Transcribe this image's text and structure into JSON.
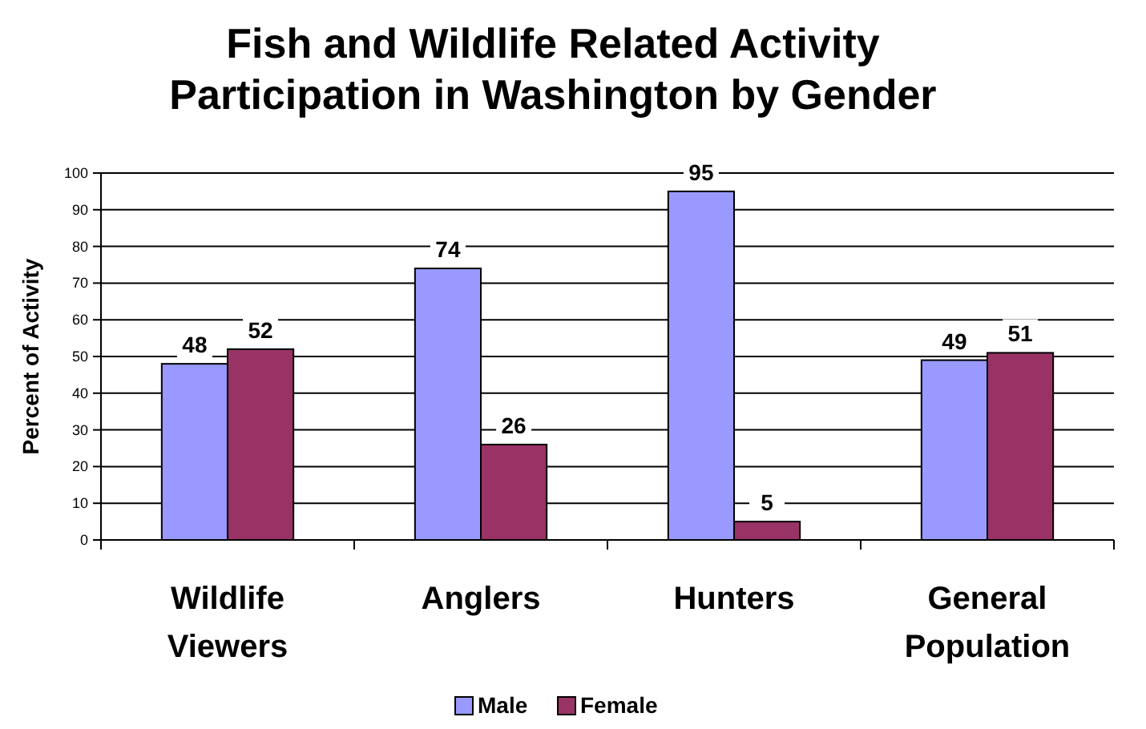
{
  "chart_data": {
    "type": "bar",
    "title": "Fish and Wildlife Related Activity Participation in Washington by Gender",
    "ylabel": "Percent of Activity",
    "categories": [
      "Wildlife Viewers",
      "Anglers",
      "Hunters",
      "General Population"
    ],
    "series": [
      {
        "name": "Male",
        "color": "#9999ff",
        "values": [
          48,
          74,
          95,
          49
        ]
      },
      {
        "name": "Female",
        "color": "#993366",
        "values": [
          52,
          26,
          5,
          51
        ]
      }
    ],
    "ylim": [
      0,
      100
    ],
    "yticks": [
      0,
      10,
      20,
      30,
      40,
      50,
      60,
      70,
      80,
      90,
      100
    ],
    "grid": "y",
    "legend": "bottom",
    "data_labels": true
  }
}
